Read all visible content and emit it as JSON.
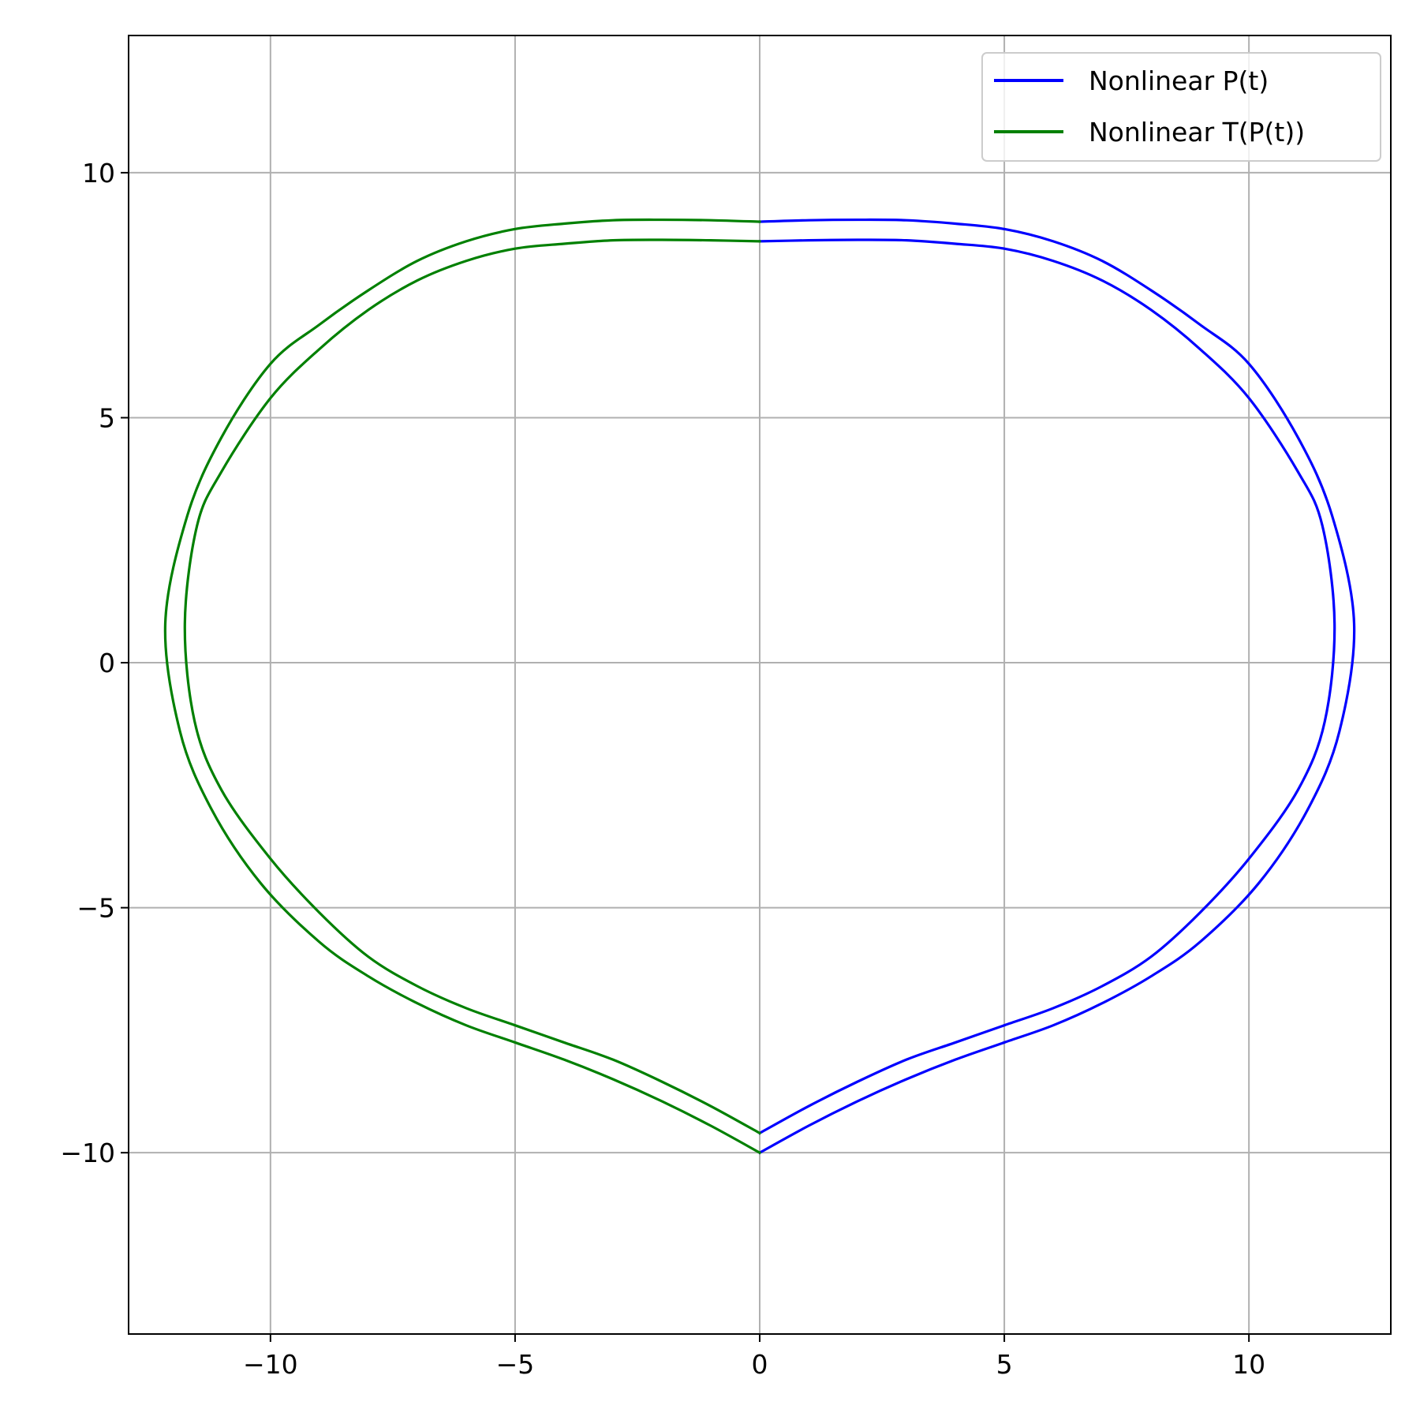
{
  "chart_data": {
    "type": "line",
    "title": "",
    "xlabel": "",
    "ylabel": "",
    "xlim": [
      -12.9,
      12.9
    ],
    "ylim": [
      -13.7,
      12.8
    ],
    "xticks": [
      -10,
      -5,
      0,
      5,
      10
    ],
    "yticks": [
      -10,
      -5,
      0,
      5,
      10
    ],
    "xtick_labels": [
      "−10",
      "−5",
      "0",
      "5",
      "10"
    ],
    "ytick_labels": [
      "−10",
      "−5",
      "0",
      "5",
      "10"
    ],
    "grid": true,
    "legend_position": "upper right",
    "series": [
      {
        "name": "Nonlinear P(t)",
        "color": "#0000ff",
        "segments": [
          [
            [
              0,
              8.6
            ],
            [
              1,
              8.62
            ],
            [
              2,
              8.63
            ],
            [
              3,
              8.62
            ],
            [
              4,
              8.55
            ],
            [
              5,
              8.45
            ],
            [
              6,
              8.2
            ],
            [
              7,
              7.8
            ],
            [
              8,
              7.2
            ],
            [
              9,
              6.4
            ],
            [
              10,
              5.4
            ],
            [
              11,
              3.9
            ],
            [
              11.5,
              2.8
            ],
            [
              11.75,
              0.8
            ],
            [
              11.55,
              -1.2
            ],
            [
              11.0,
              -2.6
            ],
            [
              10.0,
              -4.0
            ],
            [
              9.0,
              -5.1
            ],
            [
              8.0,
              -6.0
            ],
            [
              7.0,
              -6.6
            ],
            [
              6.0,
              -7.05
            ],
            [
              5.0,
              -7.4
            ],
            [
              4.0,
              -7.75
            ],
            [
              3.0,
              -8.1
            ],
            [
              2.0,
              -8.55
            ],
            [
              1.0,
              -9.05
            ],
            [
              0,
              -9.6
            ]
          ],
          [
            [
              0,
              9.0
            ],
            [
              1,
              9.03
            ],
            [
              2,
              9.04
            ],
            [
              3,
              9.03
            ],
            [
              4,
              8.96
            ],
            [
              5,
              8.85
            ],
            [
              6,
              8.6
            ],
            [
              7,
              8.2
            ],
            [
              8,
              7.6
            ],
            [
              9,
              6.9
            ],
            [
              10,
              6.1
            ],
            [
              11,
              4.6
            ],
            [
              11.7,
              3.0
            ],
            [
              12.15,
              0.8
            ],
            [
              11.85,
              -1.4
            ],
            [
              11.2,
              -3.0
            ],
            [
              10.2,
              -4.5
            ],
            [
              9.0,
              -5.7
            ],
            [
              8.0,
              -6.4
            ],
            [
              7.0,
              -6.95
            ],
            [
              6.0,
              -7.4
            ],
            [
              5.0,
              -7.75
            ],
            [
              4.0,
              -8.1
            ],
            [
              3.0,
              -8.5
            ],
            [
              2.0,
              -8.95
            ],
            [
              1.0,
              -9.45
            ],
            [
              0,
              -10.0
            ]
          ]
        ]
      },
      {
        "name": "Nonlinear T(P(t))",
        "color": "#008000",
        "segments": [
          [
            [
              0,
              8.6
            ],
            [
              -1,
              8.62
            ],
            [
              -2,
              8.63
            ],
            [
              -3,
              8.62
            ],
            [
              -4,
              8.55
            ],
            [
              -5,
              8.45
            ],
            [
              -6,
              8.2
            ],
            [
              -7,
              7.8
            ],
            [
              -8,
              7.2
            ],
            [
              -9,
              6.4
            ],
            [
              -10,
              5.4
            ],
            [
              -11,
              3.9
            ],
            [
              -11.5,
              2.8
            ],
            [
              -11.75,
              0.8
            ],
            [
              -11.55,
              -1.2
            ],
            [
              -11.0,
              -2.6
            ],
            [
              -10.0,
              -4.0
            ],
            [
              -9.0,
              -5.1
            ],
            [
              -8.0,
              -6.0
            ],
            [
              -7.0,
              -6.6
            ],
            [
              -6.0,
              -7.05
            ],
            [
              -5.0,
              -7.4
            ],
            [
              -4.0,
              -7.75
            ],
            [
              -3.0,
              -8.1
            ],
            [
              -2.0,
              -8.55
            ],
            [
              -1.0,
              -9.05
            ],
            [
              0,
              -9.6
            ]
          ],
          [
            [
              0,
              9.0
            ],
            [
              -1,
              9.03
            ],
            [
              -2,
              9.04
            ],
            [
              -3,
              9.03
            ],
            [
              -4,
              8.96
            ],
            [
              -5,
              8.85
            ],
            [
              -6,
              8.6
            ],
            [
              -7,
              8.2
            ],
            [
              -8,
              7.6
            ],
            [
              -9,
              6.9
            ],
            [
              -10,
              6.1
            ],
            [
              -11,
              4.6
            ],
            [
              -11.7,
              3.0
            ],
            [
              -12.15,
              0.8
            ],
            [
              -11.85,
              -1.4
            ],
            [
              -11.2,
              -3.0
            ],
            [
              -10.2,
              -4.5
            ],
            [
              -9.0,
              -5.7
            ],
            [
              -8.0,
              -6.4
            ],
            [
              -7.0,
              -6.95
            ],
            [
              -6.0,
              -7.4
            ],
            [
              -5.0,
              -7.75
            ],
            [
              -4.0,
              -8.1
            ],
            [
              -3.0,
              -8.5
            ],
            [
              -2.0,
              -8.95
            ],
            [
              -1.0,
              -9.45
            ],
            [
              0,
              -10.0
            ]
          ]
        ]
      }
    ]
  }
}
